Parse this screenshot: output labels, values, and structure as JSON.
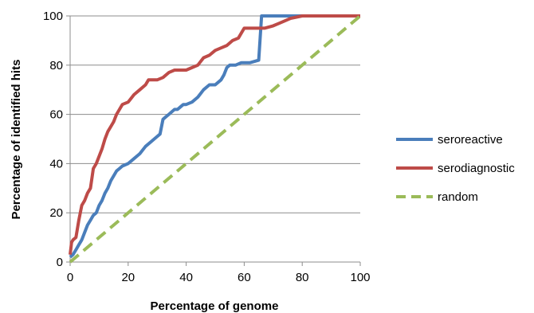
{
  "chart_data": {
    "type": "line",
    "title": "",
    "xlabel": "Percentage of genome",
    "ylabel": "Percentage of identified hits",
    "xlim": [
      0,
      100
    ],
    "ylim": [
      0,
      100
    ],
    "x_ticks": [
      "0",
      "20",
      "40",
      "60",
      "80",
      "100"
    ],
    "y_ticks": [
      "0",
      "20",
      "40",
      "60",
      "80",
      "100"
    ],
    "grid": "horizontal",
    "legend_position": "right",
    "series": [
      {
        "name": "seroreactive",
        "color": "#4a7ebb",
        "style": "solid",
        "points": [
          [
            0,
            2
          ],
          [
            1,
            3
          ],
          [
            2,
            5
          ],
          [
            3,
            7
          ],
          [
            4,
            9
          ],
          [
            5,
            12
          ],
          [
            6,
            15
          ],
          [
            7,
            17
          ],
          [
            8,
            19
          ],
          [
            9,
            20
          ],
          [
            10,
            23
          ],
          [
            11,
            25
          ],
          [
            12,
            28
          ],
          [
            13,
            30
          ],
          [
            14,
            33
          ],
          [
            15,
            35
          ],
          [
            16,
            37
          ],
          [
            17,
            38
          ],
          [
            18,
            39
          ],
          [
            20,
            40
          ],
          [
            22,
            42
          ],
          [
            24,
            44
          ],
          [
            26,
            47
          ],
          [
            28,
            49
          ],
          [
            30,
            51
          ],
          [
            31,
            52
          ],
          [
            32,
            58
          ],
          [
            33,
            59
          ],
          [
            34,
            60
          ],
          [
            35,
            61
          ],
          [
            36,
            62
          ],
          [
            37,
            62
          ],
          [
            38,
            63
          ],
          [
            39,
            64
          ],
          [
            40,
            64
          ],
          [
            42,
            65
          ],
          [
            44,
            67
          ],
          [
            46,
            70
          ],
          [
            48,
            72
          ],
          [
            50,
            72
          ],
          [
            52,
            74
          ],
          [
            53,
            76
          ],
          [
            54,
            79
          ],
          [
            55,
            80
          ],
          [
            57,
            80
          ],
          [
            59,
            81
          ],
          [
            62,
            81
          ],
          [
            65,
            82
          ],
          [
            66,
            100
          ],
          [
            100,
            100
          ]
        ]
      },
      {
        "name": "serodiagnostic",
        "color": "#be4b48",
        "style": "solid",
        "points": [
          [
            0,
            3
          ],
          [
            0.5,
            8
          ],
          [
            1,
            9
          ],
          [
            2,
            10
          ],
          [
            3,
            17
          ],
          [
            4,
            23
          ],
          [
            5,
            25
          ],
          [
            6,
            28
          ],
          [
            7,
            30
          ],
          [
            8,
            38
          ],
          [
            9,
            40
          ],
          [
            10,
            43
          ],
          [
            11,
            46
          ],
          [
            12,
            50
          ],
          [
            13,
            53
          ],
          [
            14,
            55
          ],
          [
            15,
            57
          ],
          [
            16,
            60
          ],
          [
            17,
            62
          ],
          [
            18,
            64
          ],
          [
            20,
            65
          ],
          [
            22,
            68
          ],
          [
            24,
            70
          ],
          [
            26,
            72
          ],
          [
            27,
            74
          ],
          [
            30,
            74
          ],
          [
            32,
            75
          ],
          [
            34,
            77
          ],
          [
            36,
            78
          ],
          [
            38,
            78
          ],
          [
            40,
            78
          ],
          [
            42,
            79
          ],
          [
            44,
            80
          ],
          [
            46,
            83
          ],
          [
            48,
            84
          ],
          [
            50,
            86
          ],
          [
            52,
            87
          ],
          [
            54,
            88
          ],
          [
            56,
            90
          ],
          [
            58,
            91
          ],
          [
            60,
            95
          ],
          [
            64,
            95
          ],
          [
            67,
            95
          ],
          [
            70,
            96
          ],
          [
            72,
            97
          ],
          [
            74,
            98
          ],
          [
            76,
            99
          ],
          [
            80,
            100
          ],
          [
            100,
            100
          ]
        ]
      },
      {
        "name": "random",
        "color": "#9bbb59",
        "style": "dashed",
        "points": [
          [
            0,
            0
          ],
          [
            100,
            100
          ]
        ]
      }
    ]
  }
}
